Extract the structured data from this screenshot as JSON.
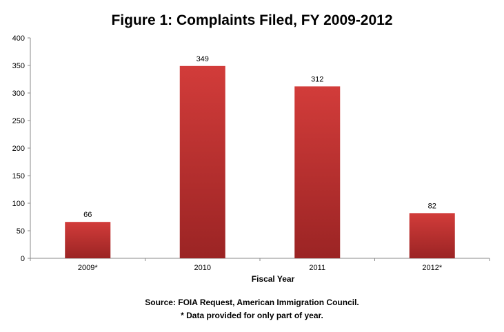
{
  "chart_data": {
    "type": "bar",
    "title": "Figure 1: Complaints Filed, FY 2009-2012",
    "xlabel": "Fiscal Year",
    "ylabel": "",
    "categories": [
      "2009*",
      "2010",
      "2011",
      "2012*"
    ],
    "values": [
      66,
      349,
      312,
      82
    ],
    "ylim": [
      0,
      400
    ],
    "yticks": [
      0,
      50,
      100,
      150,
      200,
      250,
      300,
      350,
      400
    ],
    "data_labels": [
      "66",
      "349",
      "312",
      "82"
    ],
    "bar_color": "#c0392b",
    "grid": false,
    "legend": "none"
  },
  "footnotes": {
    "source": "Source: FOIA Request, American Immigration Council.",
    "partial": "* Data provided for only part of year."
  }
}
